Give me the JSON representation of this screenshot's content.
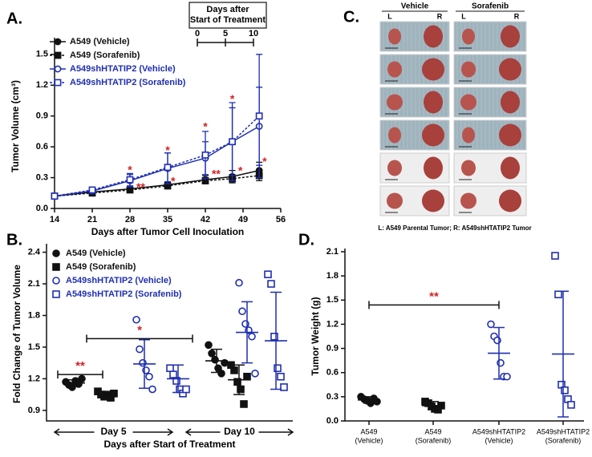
{
  "chart_data": [
    {
      "panel": "A.",
      "type": "line",
      "ylabel": "Tumor Volume (cm³)",
      "xlabel": "Days after Tumor  Cell Inoculation",
      "x": [
        14,
        21,
        28,
        35,
        42,
        47,
        52
      ],
      "xlim": [
        14,
        56
      ],
      "xticks": [
        14,
        21,
        28,
        35,
        42,
        49,
        56
      ],
      "ylim": [
        0,
        1.6
      ],
      "yticks": [
        {
          "value": 0,
          "label": "0.0"
        },
        0.3,
        0.6,
        0.9,
        1.2,
        1.5
      ],
      "inset": {
        "title": [
          "Days after",
          "Start of Treatment"
        ],
        "ticks": [
          0,
          5,
          10
        ]
      },
      "series": [
        {
          "name": "A549 (Vehicle)",
          "color": "#111111",
          "marker": "circle",
          "fill": true,
          "dash": false,
          "values": [
            0.12,
            0.16,
            0.19,
            0.23,
            0.28,
            0.31,
            0.37
          ],
          "errors": [
            0.01,
            0.01,
            0.02,
            0.03,
            0.04,
            0.06,
            0.08
          ]
        },
        {
          "name": "A549 (Sorafenib)",
          "color": "#111111",
          "marker": "square",
          "fill": true,
          "dash": true,
          "values": [
            0.12,
            0.15,
            0.18,
            0.22,
            0.27,
            0.29,
            0.32
          ],
          "errors": [
            0.01,
            0.01,
            0.02,
            0.03,
            0.03,
            0.04,
            0.05
          ]
        },
        {
          "name": "A549shHTATIP2 (Vehicle)",
          "color": "#1f2fb0",
          "marker": "circle",
          "fill": false,
          "dash": false,
          "values": [
            0.12,
            0.17,
            0.27,
            0.39,
            0.49,
            0.65,
            0.8
          ],
          "errors": [
            0.01,
            0.02,
            0.06,
            0.15,
            0.16,
            0.33,
            0.38
          ]
        },
        {
          "name": "A549shHTATIP2 (Sorafenib)",
          "color": "#1f2fb0",
          "marker": "square",
          "fill": false,
          "dash": true,
          "values": [
            0.12,
            0.18,
            0.28,
            0.4,
            0.52,
            0.65,
            0.9
          ],
          "errors": [
            0.01,
            0.02,
            0.06,
            0.14,
            0.23,
            0.38,
            0.6
          ]
        }
      ],
      "annotations": [
        {
          "text": "*",
          "x": 28,
          "y": 0.37,
          "color": "#d42020"
        },
        {
          "text": "*",
          "x": 35,
          "y": 0.56,
          "color": "#d42020"
        },
        {
          "text": "*",
          "x": 42,
          "y": 0.79,
          "color": "#d42020"
        },
        {
          "text": "*",
          "x": 47,
          "y": 1.06,
          "color": "#d42020"
        },
        {
          "text": "*",
          "x": 53,
          "y": 0.45,
          "color": "#d42020"
        },
        {
          "text": "**",
          "x": 30,
          "y": 0.2,
          "color": "#d42020"
        },
        {
          "text": "*",
          "x": 36,
          "y": 0.26,
          "color": "#d42020"
        },
        {
          "text": "**",
          "x": 44,
          "y": 0.33,
          "color": "#d42020"
        },
        {
          "text": "*",
          "x": 48.5,
          "y": 0.36,
          "color": "#d42020"
        }
      ]
    },
    {
      "panel": "B.",
      "type": "strip",
      "ylabel": "Fold Change of Tumor Volume",
      "xlabel": "Days after Start of Treatment",
      "groups": [
        "Day 5",
        "Day 10"
      ],
      "ylim": [
        0.8,
        2.45
      ],
      "yticks": [
        0.9,
        1.2,
        1.5,
        1.8,
        2.1,
        2.4
      ],
      "series": [
        {
          "name": "A549 (Vehicle)",
          "color": "#111111",
          "marker": "circle",
          "fill": true,
          "values": [
            [
              1.17,
              1.14,
              1.12,
              1.18,
              1.15,
              1.2
            ],
            [
              1.52,
              1.44,
              1.38,
              1.3,
              1.25,
              1.35
            ]
          ],
          "mean": [
            1.16,
            1.37
          ],
          "sd": [
            0.03,
            0.11
          ]
        },
        {
          "name": "A549 (Sorafenib)",
          "color": "#111111",
          "marker": "square",
          "fill": true,
          "values": [
            [
              1.08,
              1.05,
              1.03,
              1.04,
              1.02,
              1.06
            ],
            [
              1.33,
              1.28,
              1.17,
              1.1,
              0.96,
              1.22
            ]
          ],
          "mean": [
            1.05,
            1.19
          ],
          "sd": [
            0.03,
            0.14
          ]
        },
        {
          "name": "A549shHTATIP2 (Vehicle)",
          "color": "#1f2fb0",
          "marker": "circle",
          "fill": false,
          "values": [
            [
              1.76,
              1.48,
              1.35,
              1.28,
              1.22,
              1.1
            ],
            [
              2.11,
              1.84,
              1.72,
              1.66,
              1.6,
              1.25
            ]
          ],
          "mean": [
            1.34,
            1.64
          ],
          "sd": [
            0.23,
            0.29
          ]
        },
        {
          "name": "A549shHTATIP2 (Sorafenib)",
          "color": "#1f2fb0",
          "marker": "square",
          "fill": false,
          "values": [
            [
              1.3,
              1.24,
              1.18,
              1.1,
              1.06,
              1.1
            ],
            [
              2.19,
              2.1,
              1.6,
              1.3,
              1.22,
              1.12
            ]
          ],
          "mean": [
            1.2,
            1.56
          ],
          "sd": [
            0.13,
            0.46
          ]
        }
      ],
      "brackets": [
        {
          "text": "**",
          "y": 1.24,
          "color": "#d42020"
        },
        {
          "text": "*",
          "y": 1.58,
          "color": "#d42020"
        }
      ]
    },
    {
      "panel": "D.",
      "type": "strip",
      "ylabel": "Tumor Weight (g)",
      "categories": [
        [
          "A549",
          "(Vehicle)"
        ],
        [
          "A549",
          "(Sorafenib)"
        ],
        [
          "A549shHTATIP2",
          "(Vehicle)"
        ],
        [
          "A549shHTATIP2",
          "(Sorafenib)"
        ]
      ],
      "ylim": [
        0,
        2.1
      ],
      "yticks": [
        {
          "value": 0,
          "label": "0.0"
        },
        0.3,
        0.6,
        0.9,
        1.2,
        1.5,
        1.8,
        2.1
      ],
      "colors": [
        "#111111",
        "#111111",
        "#1f2fb0",
        "#1f2fb0"
      ],
      "markers": [
        "circle",
        "square",
        "circle",
        "square"
      ],
      "fills": [
        true,
        true,
        false,
        false
      ],
      "values": [
        [
          0.3,
          0.27,
          0.25,
          0.22,
          0.28,
          0.24
        ],
        [
          0.24,
          0.22,
          0.18,
          0.15,
          0.14,
          0.19
        ],
        [
          1.2,
          1.05,
          1.0,
          0.72,
          0.55,
          0.55
        ],
        [
          2.05,
          1.57,
          0.45,
          0.38,
          0.27,
          0.2
        ]
      ],
      "mean": [
        0.26,
        0.19,
        0.84,
        0.83
      ],
      "sd": [
        0.04,
        0.05,
        0.32,
        0.78
      ],
      "brackets": [
        {
          "text": "**",
          "y": 1.44,
          "color": "#d42020"
        }
      ]
    }
  ],
  "photo_panel": {
    "panel": "C.",
    "columns": [
      {
        "title": "Vehicle",
        "left": "L",
        "right": "R"
      },
      {
        "title": "Sorafenib",
        "left": "L",
        "right": "R"
      }
    ],
    "caption": "L: A549 Parental Tumor; R: A549shHTATIP2 Tumor"
  }
}
